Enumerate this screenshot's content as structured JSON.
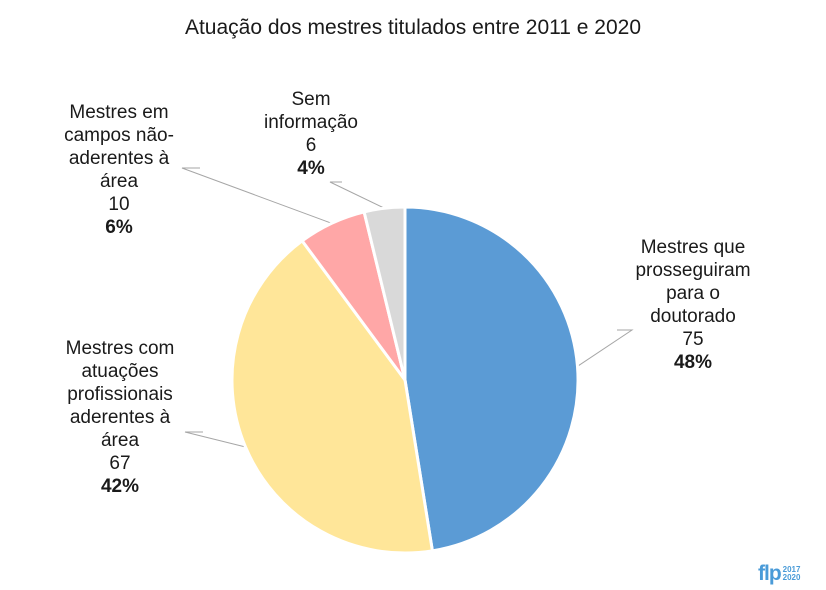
{
  "chart_data": {
    "type": "pie",
    "title": "Atuação dos mestres titulados entre 2011 e 2020",
    "slices": [
      {
        "label": "Mestres que\nprosseguiram\npara o\ndoutorado",
        "value": 75,
        "percent": "48%",
        "color": "#5b9bd5"
      },
      {
        "label": "Mestres com\natuações\nprofissionais\naderentes à\nárea",
        "value": 67,
        "percent": "42%",
        "color": "#ffe699"
      },
      {
        "label": "Mestres em\ncampos não-\naderentes à\nárea",
        "value": 10,
        "percent": "6%",
        "color": "#ffa7a7"
      },
      {
        "label": "Sem\ninformação",
        "value": 6,
        "percent": "4%",
        "color": "#d9d9d9"
      }
    ],
    "start_angle": "12 o'clock",
    "direction": "clockwise",
    "legend": "none",
    "data_labels": "outside with leader lines"
  },
  "logo": {
    "mark": "flp",
    "year_top": "2017",
    "year_bottom": "2020"
  }
}
